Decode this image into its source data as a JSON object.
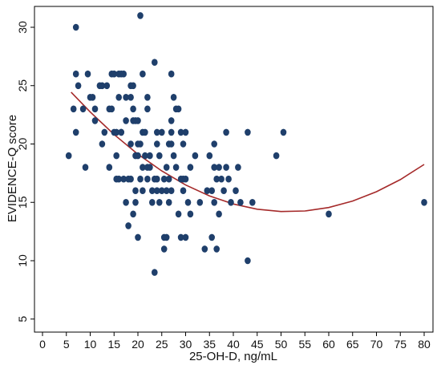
{
  "chart_data": {
    "type": "scatter",
    "xlabel": "25-OH-D, ng/mL",
    "ylabel": "EVIDENCE-Q score",
    "xlim": [
      0,
      80
    ],
    "ylim": [
      5,
      32
    ],
    "x_ticks": [
      0,
      5,
      10,
      15,
      20,
      25,
      30,
      35,
      40,
      45,
      50,
      55,
      60,
      65,
      70,
      75,
      80
    ],
    "y_ticks": [
      5,
      10,
      15,
      20,
      25,
      30
    ],
    "grid": false,
    "legend": "none",
    "colors": {
      "points": "#1f3f6b",
      "fit": "#a52a2a",
      "frame": "#000000"
    },
    "series": [
      {
        "type": "scatter",
        "points": [
          [
            5.5,
            19
          ],
          [
            6.5,
            23
          ],
          [
            7,
            30
          ],
          [
            7,
            26
          ],
          [
            7,
            21
          ],
          [
            7.5,
            25
          ],
          [
            8.5,
            23
          ],
          [
            9,
            18
          ],
          [
            9.5,
            26
          ],
          [
            10,
            24
          ],
          [
            10.5,
            24
          ],
          [
            11,
            22
          ],
          [
            11,
            23
          ],
          [
            12,
            25
          ],
          [
            12.5,
            20
          ],
          [
            12.5,
            25
          ],
          [
            13,
            21
          ],
          [
            13.5,
            25
          ],
          [
            14,
            18
          ],
          [
            14,
            23
          ],
          [
            14.5,
            26
          ],
          [
            14.5,
            23
          ],
          [
            15,
            21
          ],
          [
            15,
            26
          ],
          [
            15.5,
            19
          ],
          [
            15.5,
            17
          ],
          [
            15.5,
            21
          ],
          [
            16,
            26
          ],
          [
            16,
            24
          ],
          [
            16,
            17
          ],
          [
            16.5,
            21
          ],
          [
            16.5,
            26
          ],
          [
            16.5,
            21
          ],
          [
            17,
            17
          ],
          [
            17,
            26
          ],
          [
            17.5,
            15
          ],
          [
            17.5,
            24
          ],
          [
            17.5,
            22
          ],
          [
            18,
            13
          ],
          [
            18,
            17
          ],
          [
            18.5,
            24
          ],
          [
            18.5,
            20
          ],
          [
            18.5,
            25
          ],
          [
            18.5,
            17
          ],
          [
            19,
            25
          ],
          [
            19,
            22
          ],
          [
            19,
            14
          ],
          [
            19,
            23
          ],
          [
            19.5,
            22
          ],
          [
            19.5,
            16
          ],
          [
            19.5,
            19
          ],
          [
            19.5,
            15
          ],
          [
            20,
            12
          ],
          [
            20,
            19
          ],
          [
            20,
            22
          ],
          [
            20,
            20
          ],
          [
            20.5,
            31
          ],
          [
            20.5,
            20
          ],
          [
            20.5,
            17
          ],
          [
            21,
            26
          ],
          [
            21,
            21
          ],
          [
            21,
            18
          ],
          [
            21,
            16
          ],
          [
            21.5,
            19
          ],
          [
            21.5,
            21
          ],
          [
            22,
            24
          ],
          [
            22,
            17
          ],
          [
            22,
            23
          ],
          [
            22,
            18
          ],
          [
            22.5,
            19
          ],
          [
            22.5,
            18
          ],
          [
            23,
            16
          ],
          [
            23,
            15
          ],
          [
            23.5,
            27
          ],
          [
            23.5,
            17
          ],
          [
            23.5,
            9
          ],
          [
            24,
            20
          ],
          [
            24,
            21
          ],
          [
            24,
            17
          ],
          [
            24,
            16
          ],
          [
            24.5,
            15
          ],
          [
            24.5,
            19
          ],
          [
            25,
            21
          ],
          [
            25,
            16
          ],
          [
            25.5,
            17
          ],
          [
            25.5,
            12
          ],
          [
            25.5,
            11
          ],
          [
            26,
            16
          ],
          [
            26,
            18
          ],
          [
            26,
            12
          ],
          [
            26.5,
            20
          ],
          [
            26.5,
            15
          ],
          [
            26.5,
            17
          ],
          [
            27,
            21
          ],
          [
            27,
            20
          ],
          [
            27,
            26
          ],
          [
            27,
            22
          ],
          [
            27,
            16
          ],
          [
            27.5,
            24
          ],
          [
            27.5,
            19
          ],
          [
            28,
            23
          ],
          [
            28,
            18
          ],
          [
            28.5,
            23
          ],
          [
            28.5,
            14
          ],
          [
            29,
            21
          ],
          [
            29,
            12
          ],
          [
            29,
            17
          ],
          [
            29.5,
            20
          ],
          [
            29.5,
            16
          ],
          [
            29.5,
            17
          ],
          [
            30,
            21
          ],
          [
            30,
            17
          ],
          [
            30,
            12
          ],
          [
            30.5,
            15
          ],
          [
            31,
            18
          ],
          [
            31,
            14
          ],
          [
            32,
            19
          ],
          [
            33,
            15
          ],
          [
            34,
            11
          ],
          [
            34.5,
            16
          ],
          [
            35,
            19
          ],
          [
            35.5,
            16
          ],
          [
            35.5,
            12
          ],
          [
            36,
            20
          ],
          [
            36,
            18
          ],
          [
            36,
            15
          ],
          [
            36.5,
            17
          ],
          [
            36.5,
            11
          ],
          [
            37,
            18
          ],
          [
            37,
            14
          ],
          [
            37.5,
            17
          ],
          [
            38,
            16
          ],
          [
            38.5,
            21
          ],
          [
            38.5,
            18
          ],
          [
            39,
            17
          ],
          [
            39.5,
            15
          ],
          [
            40.5,
            16
          ],
          [
            41,
            18
          ],
          [
            41.5,
            15
          ],
          [
            43,
            21
          ],
          [
            43,
            10
          ],
          [
            44,
            15
          ],
          [
            49,
            19
          ],
          [
            50.5,
            21
          ],
          [
            60,
            14
          ],
          [
            80,
            15
          ]
        ]
      },
      {
        "type": "line",
        "fit": "quadratic",
        "points": [
          [
            6,
            24.44
          ],
          [
            10,
            22.74
          ],
          [
            15,
            20.81
          ],
          [
            20,
            19.13
          ],
          [
            25,
            17.69
          ],
          [
            30,
            16.49
          ],
          [
            35,
            15.55
          ],
          [
            40,
            14.86
          ],
          [
            45,
            14.41
          ],
          [
            50,
            14.21
          ],
          [
            55,
            14.26
          ],
          [
            60,
            14.56
          ],
          [
            65,
            15.11
          ],
          [
            70,
            15.91
          ],
          [
            75,
            16.95
          ],
          [
            80,
            18.25
          ]
        ]
      }
    ]
  }
}
